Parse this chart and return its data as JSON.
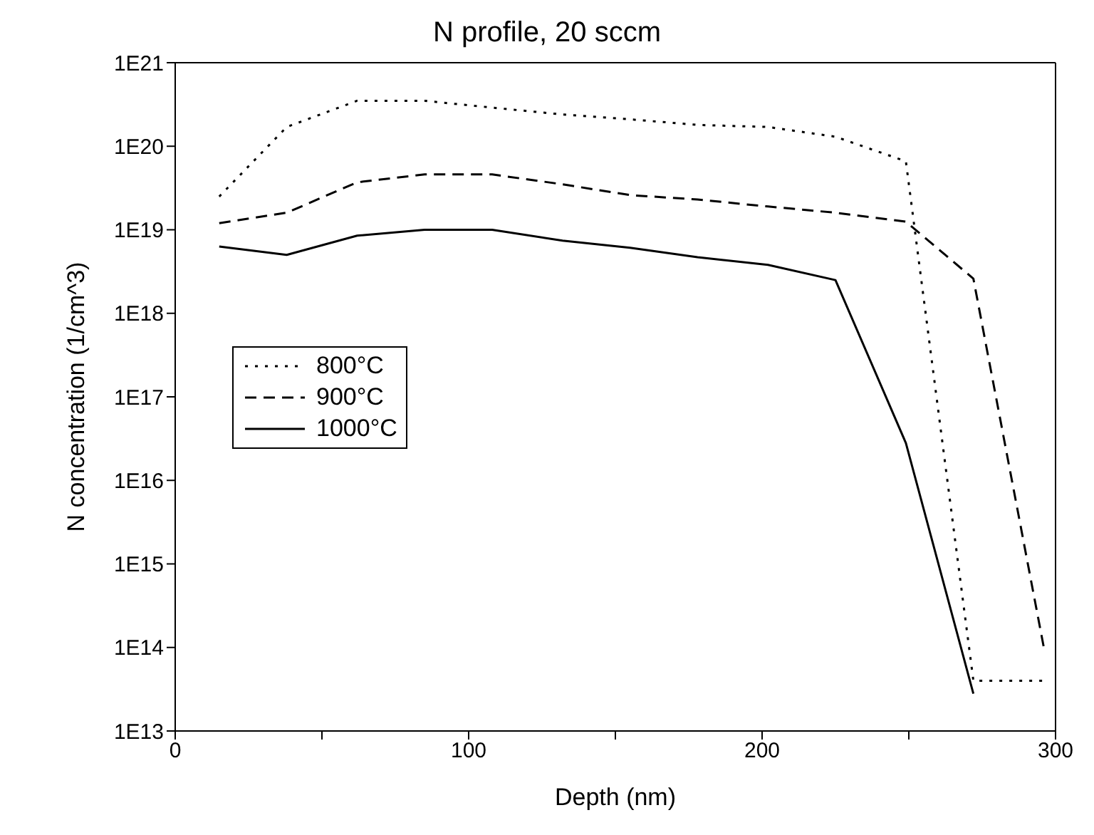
{
  "chart_data": {
    "type": "line",
    "title": "N profile, 20 sccm",
    "xlabel": "Depth (nm)",
    "ylabel": "N concentration (1/cm^3)",
    "x": [
      15,
      38,
      62,
      85,
      108,
      132,
      155,
      178,
      202,
      225,
      249,
      272,
      296
    ],
    "series": [
      {
        "name": "800°C",
        "color": "#000000",
        "line_style": "dotted",
        "values": [
          2.5e+19,
          1.7e+20,
          3.5e+20,
          3.5e+20,
          2.9e+20,
          2.4e+20,
          2.1e+20,
          1.8e+20,
          1.7e+20,
          1.3e+20,
          6.6e+19,
          40000000000000.0,
          40000000000000.0
        ]
      },
      {
        "name": "900°C",
        "color": "#000000",
        "line_style": "dashed",
        "values": [
          1.2e+19,
          1.6e+19,
          3.7e+19,
          4.6e+19,
          4.6e+19,
          3.5e+19,
          2.6e+19,
          2.3e+19,
          1.9e+19,
          1.6e+19,
          1.25e+19,
          2.6e+18,
          100000000000000.0
        ]
      },
      {
        "name": "1000°C",
        "color": "#000000",
        "line_style": "solid",
        "values": [
          6.3e+18,
          5e+18,
          8.5e+18,
          1e+19,
          1e+19,
          7.4e+18,
          6.1e+18,
          4.7e+18,
          3.8e+18,
          2.5e+18,
          2.8e+16,
          28000000000000.0,
          null
        ]
      }
    ],
    "xlim": [
      0,
      300
    ],
    "xticks": [
      0,
      {
        "value": 50,
        "label": null
      },
      100,
      {
        "value": 150,
        "label": null
      },
      200,
      {
        "value": 250,
        "label": null
      },
      300
    ],
    "log": "y",
    "ylim": [
      10000000000000.0,
      1e+21
    ],
    "yticks": [
      {
        "value": 10000000000000.0,
        "label": "1E13"
      },
      {
        "value": 100000000000000.0,
        "label": "1E14"
      },
      {
        "value": 1000000000000000.0,
        "label": "1E15"
      },
      {
        "value": 1e+16,
        "label": "1E16"
      },
      {
        "value": 1e+17,
        "label": "1E17"
      },
      {
        "value": 1e+18,
        "label": "1E18"
      },
      {
        "value": 1e+19,
        "label": "1E19"
      },
      {
        "value": 1e+20,
        "label": "1E20"
      },
      {
        "value": 1e+21,
        "label": "1E21"
      }
    ],
    "grid": false,
    "legend": "left",
    "marker": "none"
  }
}
